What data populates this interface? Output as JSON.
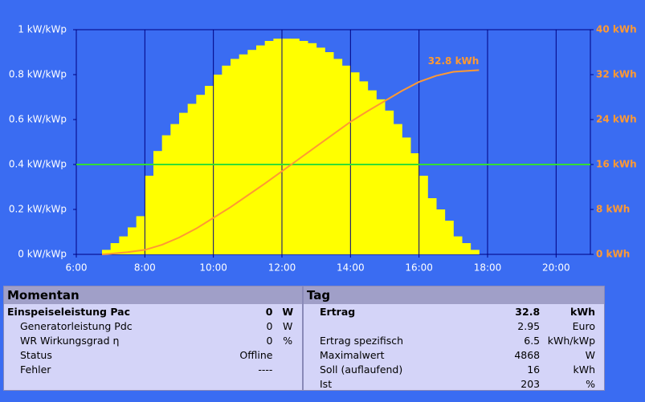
{
  "chart_data": {
    "type": "bar-line",
    "xlim": [
      6,
      21
    ],
    "xticks": [
      {
        "value": 6,
        "label": "6:00"
      },
      {
        "value": 8,
        "label": "8:00"
      },
      {
        "value": 10,
        "label": "10:00"
      },
      {
        "value": 12,
        "label": "12:00"
      },
      {
        "value": 14,
        "label": "14:00"
      },
      {
        "value": 16,
        "label": "16:00"
      },
      {
        "value": 18,
        "label": "18:00"
      },
      {
        "value": 20,
        "label": "20:00"
      }
    ],
    "ylim": [
      0,
      1
    ],
    "yticks": [
      {
        "value": 0,
        "label": "0 kW/kWp"
      },
      {
        "value": 0.2,
        "label": "0.2 kW/kWp"
      },
      {
        "value": 0.4,
        "label": "0.4 kW/kWp"
      },
      {
        "value": 0.6,
        "label": "0.6 kW/kWp"
      },
      {
        "value": 0.8,
        "label": "0.8 kW/kWp"
      },
      {
        "value": 1,
        "label": "1 kW/kWp"
      }
    ],
    "y2lim": [
      0,
      40
    ],
    "y2ticks": [
      {
        "value": 0,
        "label": "0 kWh"
      },
      {
        "value": 8,
        "label": "8 kWh"
      },
      {
        "value": 16,
        "label": "16 kWh"
      },
      {
        "value": 24,
        "label": "24 kWh"
      },
      {
        "value": 32,
        "label": "32 kWh"
      },
      {
        "value": 40,
        "label": "40 kWh"
      }
    ],
    "grid": true,
    "reference_line": {
      "value": 0.4,
      "color": "#33dd33"
    },
    "annotation": "32.8 kWh",
    "series": [
      {
        "type": "bar",
        "color": "#ffff00",
        "step": 0.25,
        "x": [
          6.5,
          6.75,
          7,
          7.25,
          7.5,
          7.75,
          8,
          8.25,
          8.5,
          8.75,
          9,
          9.25,
          9.5,
          9.75,
          10,
          10.25,
          10.5,
          10.75,
          11,
          11.25,
          11.5,
          11.75,
          12,
          12.25,
          12.5,
          12.75,
          13,
          13.25,
          13.5,
          13.75,
          14,
          14.25,
          14.5,
          14.75,
          15,
          15.25,
          15.5,
          15.75,
          16,
          16.25,
          16.5,
          16.75,
          17,
          17.25,
          17.5,
          17.75
        ],
        "values": [
          0,
          0.02,
          0.05,
          0.08,
          0.12,
          0.17,
          0.35,
          0.46,
          0.53,
          0.58,
          0.63,
          0.67,
          0.71,
          0.75,
          0.8,
          0.84,
          0.87,
          0.89,
          0.91,
          0.93,
          0.95,
          0.96,
          0.96,
          0.96,
          0.95,
          0.94,
          0.92,
          0.9,
          0.87,
          0.84,
          0.81,
          0.77,
          0.73,
          0.69,
          0.64,
          0.58,
          0.52,
          0.45,
          0.35,
          0.25,
          0.2,
          0.15,
          0.08,
          0.05,
          0.02,
          0
        ]
      },
      {
        "type": "line",
        "axis": "y2",
        "color": "#ff9933",
        "x": [
          6.75,
          7,
          7.5,
          8,
          8.5,
          9,
          9.5,
          10,
          10.5,
          11,
          11.5,
          12,
          12.5,
          13,
          13.5,
          14,
          14.5,
          15,
          15.5,
          16,
          16.5,
          17,
          17.75
        ],
        "values": [
          0,
          0.1,
          0.4,
          0.8,
          1.7,
          3,
          4.6,
          6.5,
          8.4,
          10.5,
          12.6,
          14.8,
          17,
          19.2,
          21.4,
          23.6,
          25.5,
          27.3,
          29.1,
          30.7,
          31.8,
          32.5,
          32.8
        ]
      }
    ]
  },
  "tables": [
    {
      "title": "Momentan",
      "rows": [
        [
          "Einspeiseleistung Pac",
          "0",
          "W"
        ],
        [
          "Generatorleistung Pdc",
          "0",
          "W"
        ],
        [
          "WR Wirkungsgrad η",
          "0",
          "%"
        ],
        [
          "Status",
          "Offline",
          null
        ],
        [
          "Fehler",
          "----",
          null
        ]
      ]
    },
    {
      "title": "Tag",
      "rows": [
        [
          "Ertrag",
          "32.8",
          "kWh"
        ],
        [
          null,
          "2.95",
          "Euro"
        ],
        [
          "Ertrag spezifisch",
          "6.5",
          "kWh/kWp"
        ],
        [
          "Maximalwert",
          "4868",
          "W"
        ],
        [
          "Soll (auflaufend)",
          "16",
          "kWh"
        ],
        [
          "Ist",
          "203",
          "%"
        ]
      ]
    }
  ]
}
